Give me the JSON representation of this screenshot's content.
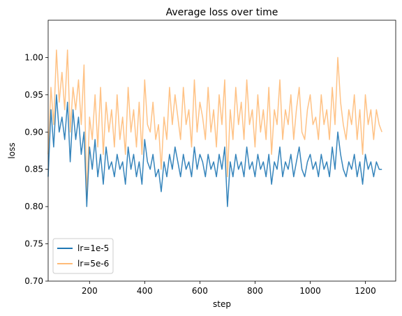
{
  "chart_data": {
    "type": "line",
    "title": "Average loss over time",
    "xlabel": "step",
    "ylabel": "loss",
    "xlim": [
      50,
      1310
    ],
    "ylim": [
      0.7,
      1.05
    ],
    "xticks": [
      200,
      400,
      600,
      800,
      1000,
      1200
    ],
    "yticks": [
      0.7,
      0.75,
      0.8,
      0.85,
      0.9,
      0.95,
      1.0
    ],
    "legend_position": "lower-left",
    "grid": false,
    "series": [
      {
        "name": "lr=1e-5",
        "color": "#1f77b4",
        "x": [
          50,
          60,
          70,
          80,
          90,
          100,
          110,
          120,
          130,
          140,
          150,
          160,
          170,
          180,
          190,
          200,
          210,
          220,
          230,
          240,
          250,
          260,
          270,
          280,
          290,
          300,
          310,
          320,
          330,
          340,
          350,
          360,
          370,
          380,
          390,
          400,
          410,
          420,
          430,
          440,
          450,
          460,
          470,
          480,
          490,
          500,
          510,
          520,
          530,
          540,
          550,
          560,
          570,
          580,
          590,
          600,
          610,
          620,
          630,
          640,
          650,
          660,
          670,
          680,
          690,
          700,
          710,
          720,
          730,
          740,
          750,
          760,
          770,
          780,
          790,
          800,
          810,
          820,
          830,
          840,
          850,
          860,
          870,
          880,
          890,
          900,
          910,
          920,
          930,
          940,
          950,
          960,
          970,
          980,
          990,
          1000,
          1010,
          1020,
          1030,
          1040,
          1050,
          1060,
          1070,
          1080,
          1090,
          1100,
          1110,
          1120,
          1130,
          1140,
          1150,
          1160,
          1170,
          1180,
          1190,
          1200,
          1210,
          1220,
          1230,
          1240,
          1250,
          1260
        ],
        "values": [
          0.84,
          0.93,
          0.88,
          0.95,
          0.9,
          0.92,
          0.89,
          0.94,
          0.86,
          0.93,
          0.89,
          0.92,
          0.87,
          0.9,
          0.8,
          0.88,
          0.85,
          0.89,
          0.84,
          0.87,
          0.83,
          0.88,
          0.85,
          0.86,
          0.84,
          0.87,
          0.85,
          0.86,
          0.83,
          0.88,
          0.85,
          0.87,
          0.84,
          0.86,
          0.83,
          0.89,
          0.86,
          0.85,
          0.87,
          0.84,
          0.85,
          0.82,
          0.86,
          0.84,
          0.87,
          0.85,
          0.88,
          0.86,
          0.84,
          0.87,
          0.85,
          0.86,
          0.84,
          0.88,
          0.85,
          0.87,
          0.86,
          0.84,
          0.87,
          0.85,
          0.86,
          0.84,
          0.87,
          0.85,
          0.88,
          0.8,
          0.86,
          0.84,
          0.87,
          0.85,
          0.86,
          0.84,
          0.88,
          0.85,
          0.86,
          0.84,
          0.87,
          0.85,
          0.86,
          0.84,
          0.87,
          0.83,
          0.86,
          0.85,
          0.88,
          0.84,
          0.86,
          0.85,
          0.87,
          0.84,
          0.86,
          0.88,
          0.85,
          0.84,
          0.86,
          0.87,
          0.85,
          0.86,
          0.84,
          0.87,
          0.85,
          0.86,
          0.84,
          0.88,
          0.85,
          0.9,
          0.87,
          0.85,
          0.84,
          0.86,
          0.85,
          0.87,
          0.84,
          0.86,
          0.83,
          0.87,
          0.85,
          0.86,
          0.84,
          0.86,
          0.85,
          0.85
        ]
      },
      {
        "name": "lr=5e-6",
        "color": "#ffbb78",
        "x": [
          50,
          60,
          70,
          80,
          90,
          100,
          110,
          120,
          130,
          140,
          150,
          160,
          170,
          180,
          190,
          200,
          210,
          220,
          230,
          240,
          250,
          260,
          270,
          280,
          290,
          300,
          310,
          320,
          330,
          340,
          350,
          360,
          370,
          380,
          390,
          400,
          410,
          420,
          430,
          440,
          450,
          460,
          470,
          480,
          490,
          500,
          510,
          520,
          530,
          540,
          550,
          560,
          570,
          580,
          590,
          600,
          610,
          620,
          630,
          640,
          650,
          660,
          670,
          680,
          690,
          700,
          710,
          720,
          730,
          740,
          750,
          760,
          770,
          780,
          790,
          800,
          810,
          820,
          830,
          840,
          850,
          860,
          870,
          880,
          890,
          900,
          910,
          920,
          930,
          940,
          950,
          960,
          970,
          980,
          990,
          1000,
          1010,
          1020,
          1030,
          1040,
          1050,
          1060,
          1070,
          1080,
          1090,
          1100,
          1110,
          1120,
          1130,
          1140,
          1150,
          1160,
          1170,
          1180,
          1190,
          1200,
          1210,
          1220,
          1230,
          1240,
          1250,
          1260
        ],
        "values": [
          0.87,
          0.96,
          0.91,
          1.01,
          0.94,
          0.98,
          0.93,
          1.01,
          0.9,
          0.96,
          0.93,
          0.97,
          0.91,
          0.99,
          0.81,
          0.92,
          0.89,
          0.95,
          0.88,
          0.96,
          0.87,
          0.94,
          0.9,
          0.93,
          0.88,
          0.95,
          0.89,
          0.92,
          0.87,
          0.96,
          0.9,
          0.93,
          0.88,
          0.94,
          0.87,
          0.97,
          0.91,
          0.9,
          0.94,
          0.89,
          0.91,
          0.85,
          0.92,
          0.89,
          0.96,
          0.91,
          0.95,
          0.92,
          0.89,
          0.96,
          0.91,
          0.93,
          0.88,
          0.97,
          0.9,
          0.94,
          0.92,
          0.89,
          0.96,
          0.9,
          0.93,
          0.88,
          0.95,
          0.91,
          0.97,
          0.84,
          0.93,
          0.89,
          0.96,
          0.91,
          0.94,
          0.89,
          0.97,
          0.91,
          0.93,
          0.88,
          0.95,
          0.9,
          0.93,
          0.89,
          0.96,
          0.87,
          0.93,
          0.91,
          0.97,
          0.89,
          0.93,
          0.91,
          0.95,
          0.89,
          0.93,
          0.96,
          0.9,
          0.89,
          0.93,
          0.95,
          0.91,
          0.92,
          0.89,
          0.95,
          0.91,
          0.93,
          0.89,
          0.96,
          0.91,
          1.0,
          0.94,
          0.91,
          0.89,
          0.93,
          0.91,
          0.95,
          0.89,
          0.93,
          0.87,
          0.95,
          0.91,
          0.93,
          0.89,
          0.93,
          0.91,
          0.9
        ]
      }
    ]
  }
}
